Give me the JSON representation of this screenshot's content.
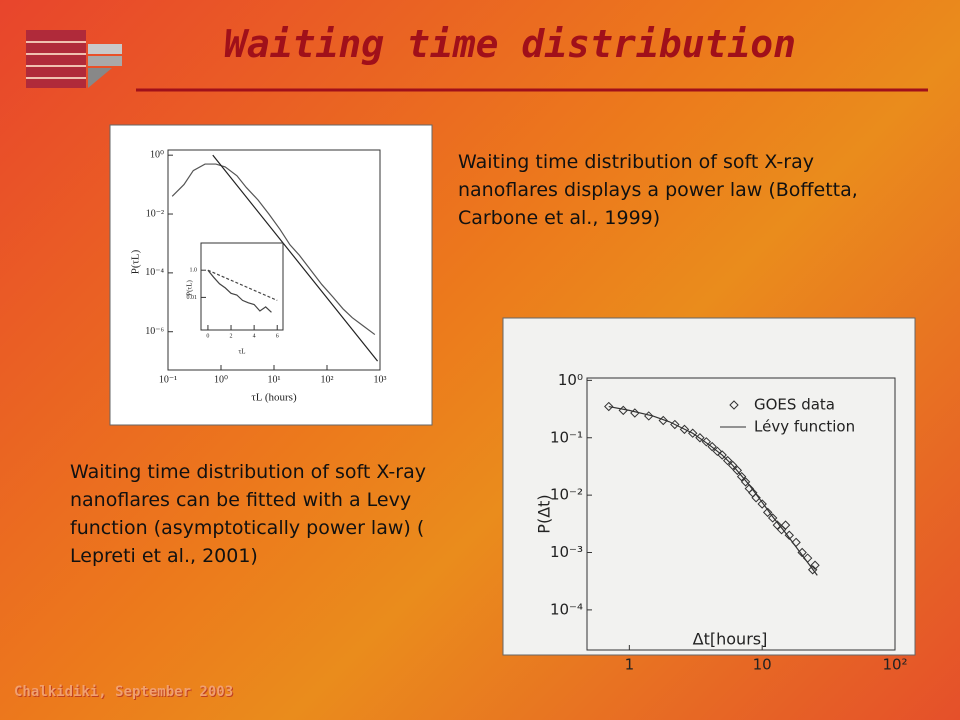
{
  "slide": {
    "title": "Waiting time distribution",
    "captions": [
      "Waiting time distribution of soft X-ray nanoflares displays a power law (Boffetta, Carbone et al., 1999)",
      "Waiting time distribution of soft X-ray nanoflares can be fitted with a Levy function (asymptotically power law)  ( Lepreti et al., 2001)"
    ],
    "footer": "Chalkidiki, September 2003"
  },
  "chart_data": [
    {
      "type": "line",
      "xlabel": "τL (hours)",
      "ylabel": "P(τL)",
      "xscale": "log",
      "yscale": "log",
      "xlim": [
        0.1,
        1000
      ],
      "ylim": [
        5e-08,
        1.5
      ],
      "xticks": [
        {
          "value": 0.1,
          "label": "10⁻¹"
        },
        {
          "value": 1,
          "label": "10⁰"
        },
        {
          "value": 10,
          "label": "10¹"
        },
        {
          "value": 100,
          "label": "10²"
        },
        {
          "value": 1000,
          "label": "10³"
        }
      ],
      "yticks": [
        {
          "value": 1,
          "label": "10⁰"
        },
        {
          "value": 0.01,
          "label": "10⁻²"
        },
        {
          "value": 0.0001,
          "label": "10⁻⁴"
        },
        {
          "value": 1e-06,
          "label": "10⁻⁶"
        }
      ],
      "series": [
        {
          "color": "#555555",
          "x": [
            0.12,
            0.2,
            0.3,
            0.5,
            0.8,
            1.2,
            2,
            3,
            5,
            8,
            13,
            20,
            30,
            50,
            80,
            130,
            200,
            300,
            500,
            800
          ],
          "values": [
            0.04,
            0.1,
            0.3,
            0.5,
            0.5,
            0.4,
            0.2,
            0.08,
            0.03,
            0.01,
            0.003,
            0.0009,
            0.0004,
            0.00012,
            4e-05,
            1.5e-05,
            6e-06,
            3e-06,
            1.5e-06,
            8e-07
          ]
        },
        {
          "color": "#222222",
          "x": [
            0.7,
            900
          ],
          "values": [
            1,
            1e-07
          ]
        }
      ]
    },
    {
      "type": "line",
      "xlabel": "τL",
      "ylabel": "P(τL)",
      "yscale": "log",
      "xlim": [
        -0.6,
        6.5
      ],
      "ylim": [
        4e-05,
        100
      ],
      "xticks": [
        0,
        2,
        4,
        6
      ],
      "yticks": [
        {
          "value": 1,
          "label": "1.0"
        },
        0.01
      ],
      "series": [
        {
          "color": "#444444",
          "x": [
            0,
            0.5,
            1,
            1.5,
            2,
            2.5,
            3,
            3.5,
            4,
            4.5,
            5,
            5.5
          ],
          "values": [
            1,
            0.3,
            0.1,
            0.05,
            0.02,
            0.015,
            0.006,
            0.004,
            0.003,
            0.001,
            0.002,
            0.0008
          ]
        },
        {
          "color": "#444444",
          "dash": true,
          "x": [
            0,
            6
          ],
          "values": [
            1,
            0.006
          ]
        }
      ]
    },
    {
      "type": "scatter",
      "xlabel": "Δt[hours]",
      "ylabel": "P(Δt)",
      "xscale": "log",
      "yscale": "log",
      "xlim": [
        0.48,
        100
      ],
      "ylim": [
        2e-05,
        1.1
      ],
      "xticks": [
        1,
        10,
        {
          "value": 100,
          "label": "10²"
        }
      ],
      "yticks": [
        {
          "value": 1,
          "label": "10⁰"
        },
        {
          "value": 0.1,
          "label": "10⁻¹"
        },
        {
          "value": 0.01,
          "label": "10⁻²"
        },
        {
          "value": 0.001,
          "label": "10⁻³"
        },
        {
          "value": 0.0001,
          "label": "10⁻⁴"
        }
      ],
      "series": [
        {
          "name": "GOES data",
          "marker": "diamond",
          "color": "#333333",
          "x": [
            0.7,
            0.9,
            1.1,
            1.4,
            1.8,
            2.2,
            2.6,
            3,
            3.4,
            3.8,
            4.2,
            4.6,
            5,
            5.5,
            6,
            6.5,
            7,
            7.5,
            8,
            8.5,
            9,
            10,
            11,
            12,
            13,
            14,
            15,
            16,
            18,
            20,
            22,
            24,
            25
          ],
          "values": [
            0.35,
            0.3,
            0.27,
            0.24,
            0.2,
            0.17,
            0.14,
            0.12,
            0.1,
            0.085,
            0.07,
            0.058,
            0.05,
            0.04,
            0.033,
            0.027,
            0.021,
            0.017,
            0.013,
            0.011,
            0.009,
            0.007,
            0.005,
            0.004,
            0.003,
            0.0025,
            0.003,
            0.002,
            0.0015,
            0.001,
            0.0008,
            0.0005,
            0.0006
          ]
        },
        {
          "name": "Lévy function",
          "color": "#333333",
          "x": [
            0.7,
            1,
            1.5,
            2,
            3,
            4,
            5,
            6,
            8,
            10,
            12,
            15,
            20,
            26
          ],
          "values": [
            0.35,
            0.3,
            0.24,
            0.19,
            0.12,
            0.075,
            0.05,
            0.033,
            0.015,
            0.0075,
            0.0042,
            0.0022,
            0.0009,
            0.0004
          ]
        }
      ]
    }
  ]
}
